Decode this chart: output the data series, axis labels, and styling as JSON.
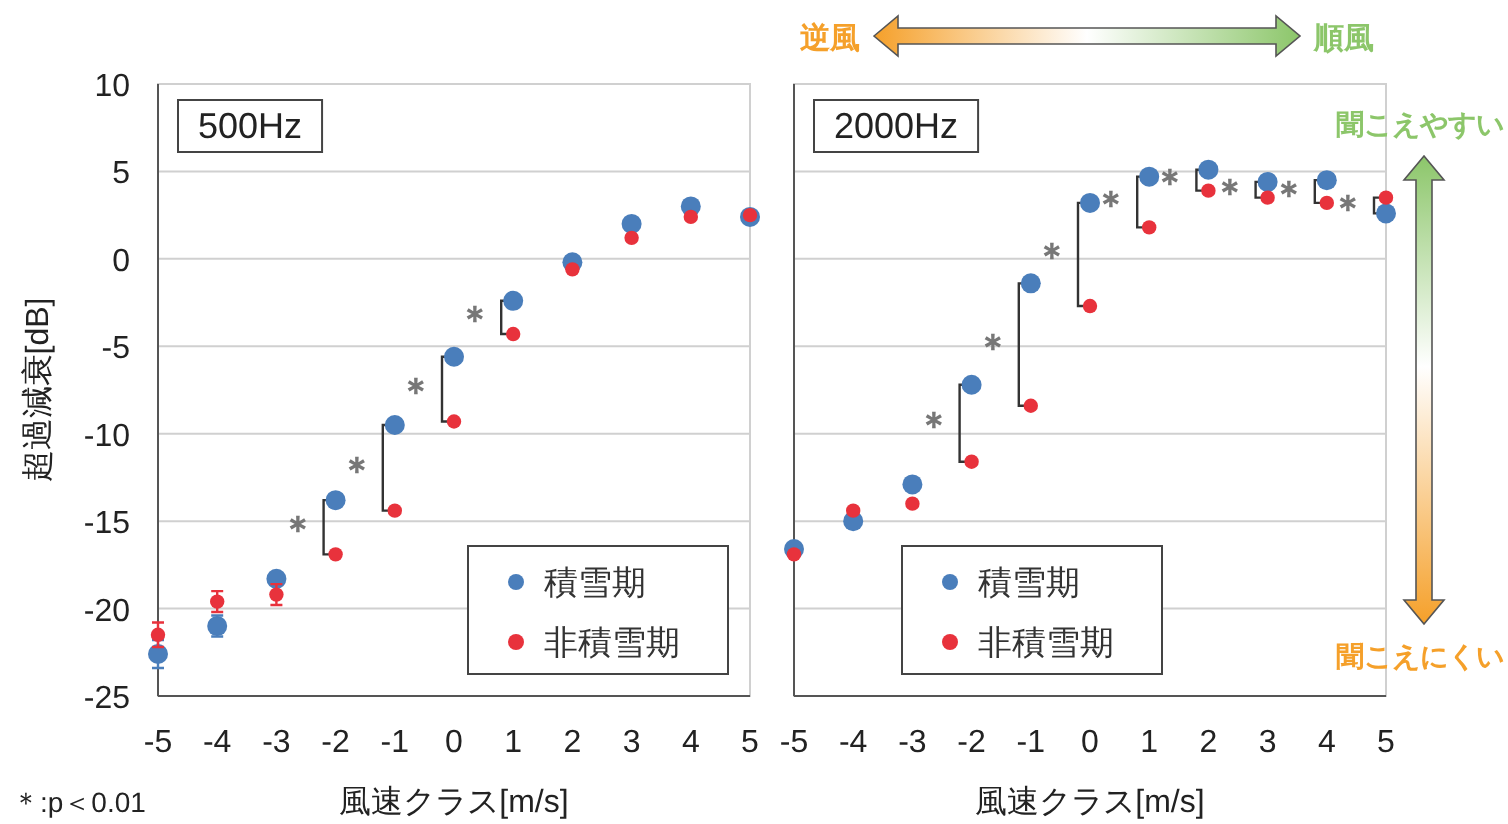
{
  "chart_data": [
    {
      "type": "scatter",
      "title": "500Hz",
      "xlabel": "風速クラス[m/s]",
      "ylabel": "超過減衰[dB]",
      "x": [
        -5,
        -4,
        -3,
        -2,
        -1,
        0,
        1,
        2,
        3,
        4,
        5
      ],
      "xlim": [
        -5,
        5
      ],
      "ylim": [
        -25,
        10
      ],
      "xticks": [
        -5,
        -4,
        -3,
        -2,
        -1,
        0,
        1,
        2,
        3,
        4,
        5
      ],
      "yticks": [
        -25,
        -20,
        -15,
        -10,
        -5,
        0,
        5,
        10
      ],
      "grid": "y",
      "legend": "bottom right",
      "marker": "circle",
      "series": [
        {
          "name": "積雪期",
          "color": "#4a7ebb",
          "values": [
            -22.6,
            -21.0,
            -18.3,
            -13.8,
            -9.5,
            -5.6,
            -2.4,
            -0.2,
            2.0,
            3.0,
            2.4
          ],
          "errors": [
            0.8,
            0.6,
            null,
            null,
            null,
            null,
            null,
            null,
            null,
            null,
            null
          ]
        },
        {
          "name": "非積雪期",
          "color": "#e8323c",
          "values": [
            -21.5,
            -19.6,
            -19.2,
            -16.9,
            -14.4,
            -9.3,
            -4.3,
            -0.6,
            1.2,
            2.4,
            2.5
          ],
          "errors": [
            0.7,
            0.6,
            0.6,
            null,
            null,
            null,
            null,
            null,
            null,
            null,
            null
          ]
        }
      ],
      "annotations": [
        "＊:p＜0.01",
        {
          "text": "＊",
          "x": -2,
          "y": -13.8
        },
        {
          "text": "＊",
          "x": -1,
          "y": -9.5
        },
        {
          "text": "＊",
          "x": 0,
          "y": -5.6
        },
        {
          "text": "＊",
          "x": 1,
          "y": -2.4
        }
      ]
    },
    {
      "type": "scatter",
      "title": "2000Hz",
      "xlabel": "風速クラス[m/s]",
      "x": [
        -5,
        -4,
        -3,
        -2,
        -1,
        0,
        1,
        2,
        3,
        4,
        5
      ],
      "xlim": [
        -5,
        5
      ],
      "ylim": [
        -25,
        10
      ],
      "xticks": [
        -5,
        -4,
        -3,
        -2,
        -1,
        0,
        1,
        2,
        3,
        4,
        5
      ],
      "yticks": [
        -25,
        -20,
        -15,
        -10,
        -5,
        0,
        5,
        10
      ],
      "tick_labels": "x",
      "grid": "y",
      "legend": "bottom left",
      "marker": "circle",
      "series": [
        {
          "name": "積雪期",
          "color": "#4a7ebb",
          "values": [
            -16.6,
            -15.0,
            -12.9,
            -7.2,
            -1.4,
            3.2,
            4.7,
            5.1,
            4.4,
            4.5,
            2.6
          ]
        },
        {
          "name": "非積雪期",
          "color": "#e8323c",
          "values": [
            -16.9,
            -14.4,
            -14.0,
            -11.6,
            -8.4,
            -2.7,
            1.8,
            3.9,
            3.5,
            3.2,
            3.5
          ]
        }
      ],
      "annotations": [
        "逆風",
        "順風",
        "聞こえやすい",
        "聞こえにくい",
        {
          "text": "＊",
          "x": -2,
          "y": -7.2
        },
        {
          "text": "＊",
          "x": -1,
          "y": -1.4
        },
        {
          "text": "＊",
          "x": 0,
          "y": 3.2
        },
        {
          "text": "＊",
          "x": 1,
          "y": 4.7
        },
        {
          "text": "＊",
          "x": 2,
          "y": 5.1
        },
        {
          "text": "＊",
          "x": 3,
          "y": 4.4
        },
        {
          "text": "＊",
          "x": 4,
          "y": 4.5
        },
        {
          "text": "＊",
          "x": 5,
          "y": 2.6
        }
      ]
    }
  ]
}
